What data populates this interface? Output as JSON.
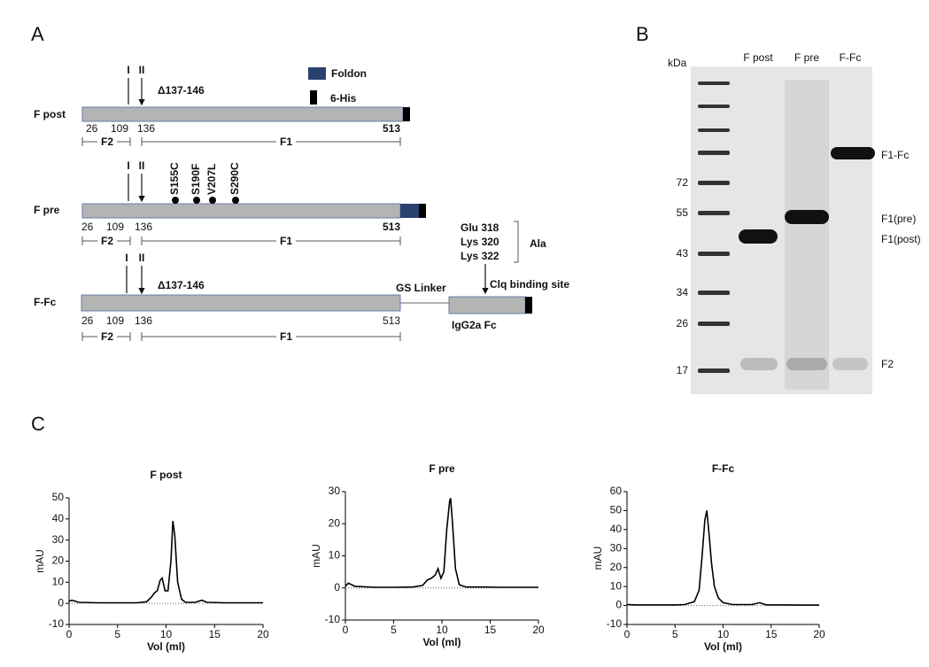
{
  "panel_letters": [
    "A",
    "B",
    "C"
  ],
  "panel_a": {
    "legend": [
      "Foldon",
      "6-His"
    ],
    "constructs": [
      {
        "name": "F post",
        "cleavage": [
          "I",
          "II"
        ],
        "deletion": "Δ137-146",
        "numbers": [
          26,
          109,
          136,
          513
        ],
        "segments": [
          "F2",
          "F1"
        ]
      },
      {
        "name": "F pre",
        "cleavage": [
          "I",
          "II"
        ],
        "mutations": [
          "S155C",
          "S190F",
          "V207L",
          "S290C"
        ],
        "numbers": [
          26,
          109,
          136,
          513
        ],
        "segments": [
          "F2",
          "F1"
        ]
      },
      {
        "name": "F-Fc",
        "cleavage": [
          "I",
          "II"
        ],
        "deletion": "Δ137-146",
        "numbers": [
          26,
          109,
          136,
          513
        ],
        "segments": [
          "F2",
          "F1"
        ],
        "linker": "GS Linker",
        "fc": "IgG2a Fc",
        "residues": [
          "Glu 318",
          "Lys 320",
          "Lys 322"
        ],
        "substitution": "Ala",
        "binding": "Clq binding site"
      }
    ]
  },
  "panel_b": {
    "unit": "kDa",
    "lanes": [
      "F post",
      "F pre",
      "F-Fc"
    ],
    "markers": [
      72,
      55,
      43,
      34,
      26,
      17
    ],
    "band_labels": [
      "F1-Fc",
      "F1(pre)",
      "F1(post)",
      "F2"
    ]
  },
  "chart_data": [
    {
      "type": "line",
      "title": "F post",
      "xlabel": "Vol (ml)",
      "ylabel": "mAU",
      "color": "#000000",
      "x": [
        0,
        0.3,
        1,
        3,
        5,
        7,
        8,
        8.5,
        8.8,
        9.1,
        9.4,
        9.6,
        9.9,
        10.2,
        10.5,
        10.7,
        10.9,
        11.2,
        11.6,
        12,
        13,
        13.7,
        14.2,
        16,
        18,
        20
      ],
      "values": [
        1,
        1.5,
        0.5,
        0.3,
        0.3,
        0.3,
        0.8,
        3,
        5,
        6,
        11,
        12,
        6,
        6,
        20,
        39,
        32,
        10,
        2,
        0.5,
        0.5,
        1.5,
        0.5,
        0.3,
        0.3,
        0.3
      ],
      "xlim": [
        0,
        20
      ],
      "xticks": [
        0,
        5,
        10,
        15,
        20
      ],
      "ylim": [
        -10,
        50
      ],
      "yticks": [
        -10,
        0,
        10,
        20,
        30,
        40,
        50
      ]
    },
    {
      "type": "line",
      "title": "F pre",
      "xlabel": "Vol (ml)",
      "ylabel": "mAU",
      "color": "#000000",
      "x": [
        0,
        0.3,
        1,
        3,
        5,
        7,
        8,
        8.5,
        8.9,
        9.3,
        9.6,
        9.9,
        10.2,
        10.5,
        10.8,
        10.9,
        11.1,
        11.4,
        11.8,
        12.5,
        14,
        16,
        18,
        20
      ],
      "values": [
        0.5,
        1.5,
        0.5,
        0.2,
        0.2,
        0.3,
        0.8,
        2.5,
        3,
        4,
        6,
        3,
        5,
        18,
        27,
        28,
        20,
        6,
        1,
        0.3,
        0.3,
        0.2,
        0.2,
        0.2
      ],
      "xlim": [
        0,
        20
      ],
      "xticks": [
        0,
        5,
        10,
        15,
        20
      ],
      "ylim": [
        -10,
        30
      ],
      "yticks": [
        -10,
        0,
        10,
        20,
        30
      ]
    },
    {
      "type": "line",
      "title": "F-Fc",
      "xlabel": "Vol (ml)",
      "ylabel": "mAU",
      "color": "#000000",
      "x": [
        0,
        1,
        3,
        5,
        6,
        7,
        7.5,
        7.8,
        8.1,
        8.3,
        8.5,
        8.8,
        9.1,
        9.5,
        10,
        11,
        13,
        13.8,
        14.5,
        16,
        18,
        20
      ],
      "values": [
        0.5,
        0.3,
        0.3,
        0.3,
        0.5,
        2,
        8,
        25,
        45,
        50,
        40,
        22,
        10,
        4,
        1.5,
        0.5,
        0.5,
        1.5,
        0.3,
        0.3,
        0.2,
        0.2
      ],
      "xlim": [
        0,
        20
      ],
      "xticks": [
        0,
        5,
        10,
        15,
        20
      ],
      "ylim": [
        -10,
        60
      ],
      "yticks": [
        -10,
        0,
        10,
        20,
        30,
        40,
        50,
        60
      ]
    }
  ]
}
